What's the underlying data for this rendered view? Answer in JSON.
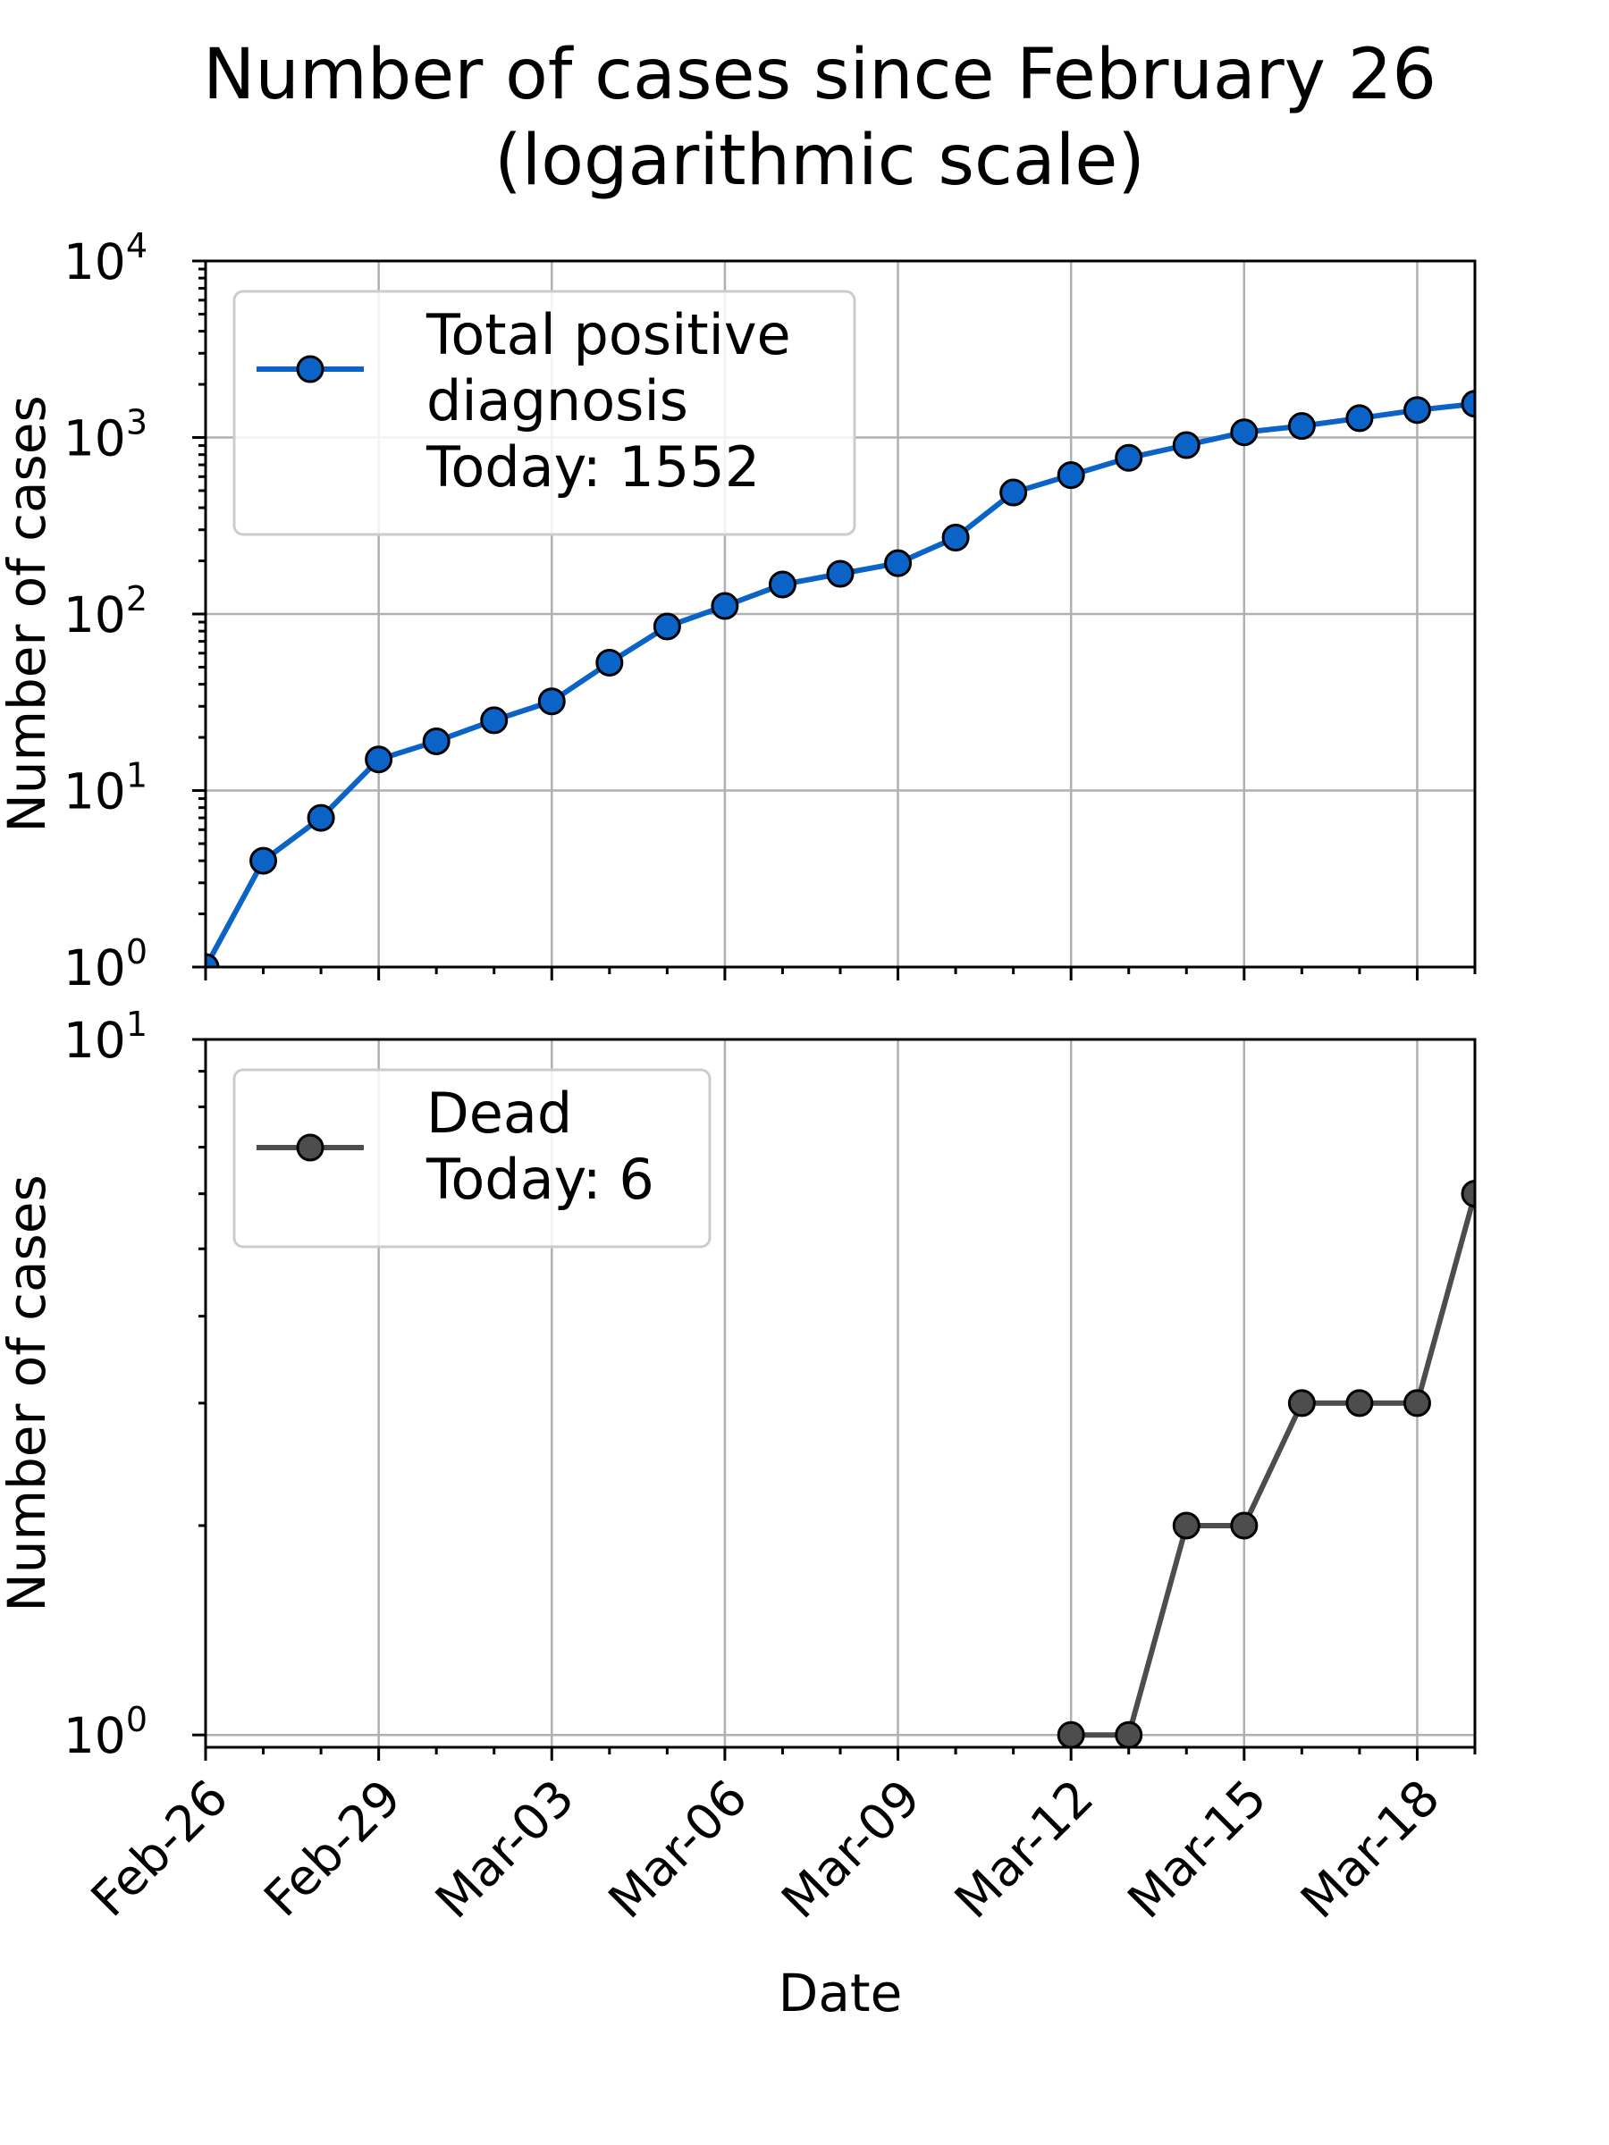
{
  "chart_data": {
    "title": "Number of cases since February 26\n(logarithmic scale)",
    "type": "line",
    "x_tick_labels": [
      "Feb-26",
      "Feb-29",
      "Mar-03",
      "Mar-06",
      "Mar-09",
      "Mar-12",
      "Mar-15",
      "Mar-18"
    ],
    "xlabel": "Date",
    "x": [
      "Feb-26",
      "Feb-27",
      "Feb-28",
      "Feb-29",
      "Mar-01",
      "Mar-02",
      "Mar-03",
      "Mar-04",
      "Mar-05",
      "Mar-06",
      "Mar-07",
      "Mar-08",
      "Mar-09",
      "Mar-10",
      "Mar-11",
      "Mar-12",
      "Mar-13",
      "Mar-14",
      "Mar-15",
      "Mar-16",
      "Mar-17",
      "Mar-18",
      "Mar-19"
    ],
    "panels": [
      {
        "ylabel": "Number of cases",
        "yscale": "log",
        "ylim": [
          1,
          10000
        ],
        "y_ticks": [
          {
            "base": "10",
            "exp": "0"
          },
          {
            "base": "10",
            "exp": "1"
          },
          {
            "base": "10",
            "exp": "2"
          },
          {
            "base": "10",
            "exp": "3"
          },
          {
            "base": "10",
            "exp": "4"
          }
        ],
        "grid": true,
        "legend_position": "upper-left",
        "series": [
          {
            "name": "Total positive\ndiagnosis",
            "legend_today": "Today: 1552",
            "color": "#0b63c7",
            "values": [
              1,
              4,
              7,
              15,
              19,
              25,
              32,
              53,
              85,
              111,
              147,
              169,
              194,
              271,
              488,
              612,
              767,
              905,
              1070,
              1162,
              1286,
              1430,
              1552
            ]
          }
        ]
      },
      {
        "ylabel": "Number of cases",
        "yscale": "log",
        "ylim": [
          0.96,
          10
        ],
        "y_ticks": [
          {
            "base": "10",
            "exp": "0"
          },
          {
            "base": "10",
            "exp": "1"
          }
        ],
        "grid": true,
        "legend_position": "upper-left",
        "series": [
          {
            "name": "Dead",
            "legend_today": "Today: 6",
            "color": "#4d4d4d",
            "values": [
              0,
              0,
              0,
              0,
              0,
              0,
              0,
              0,
              0,
              0,
              0,
              0,
              0,
              0,
              0,
              1,
              1,
              2,
              2,
              3,
              3,
              3,
              6
            ]
          }
        ]
      }
    ]
  }
}
